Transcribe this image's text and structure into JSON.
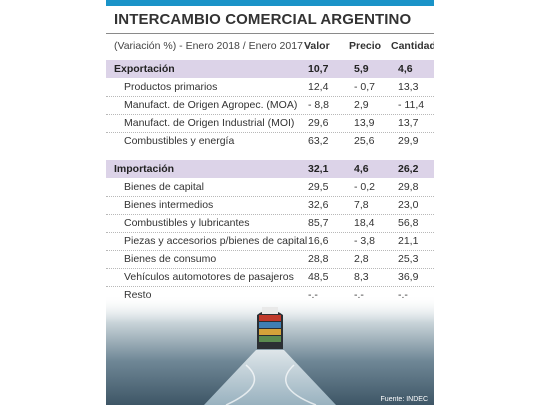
{
  "title": "INTERCAMBIO COMERCIAL ARGENTINO",
  "header": {
    "label": "(Variación %) - Enero 2018 / Enero 2017 -",
    "columns": [
      "Valor",
      "Precio",
      "Cantidad"
    ]
  },
  "exportacion": {
    "label": "Exportación",
    "values": [
      "10,7",
      "5,9",
      "4,6"
    ],
    "rows": [
      {
        "name": "Productos primarios",
        "values": [
          "12,4",
          "- 0,7",
          "13,3"
        ]
      },
      {
        "name": "Manufact. de Origen Agropec. (MOA)",
        "values": [
          "- 8,8",
          "2,9",
          "- 11,4"
        ]
      },
      {
        "name": "Manufact. de Origen Industrial (MOI)",
        "values": [
          "29,6",
          "13,9",
          "13,7"
        ]
      },
      {
        "name": "Combustibles y energía",
        "values": [
          "63,2",
          "25,6",
          "29,9"
        ]
      }
    ]
  },
  "importacion": {
    "label": "Importación",
    "values": [
      "32,1",
      "4,6",
      "26,2"
    ],
    "rows": [
      {
        "name": "Bienes de capital",
        "values": [
          "29,5",
          "- 0,2",
          "29,8"
        ]
      },
      {
        "name": "Bienes intermedios",
        "values": [
          "32,6",
          "7,8",
          "23,0"
        ]
      },
      {
        "name": "Combustibles y lubricantes",
        "values": [
          "85,7",
          "18,4",
          "56,8"
        ]
      },
      {
        "name": "Piezas y accesorios p/bienes de capital",
        "values": [
          "16,6",
          "- 3,8",
          "21,1"
        ]
      },
      {
        "name": "Bienes de consumo",
        "values": [
          "28,8",
          "2,8",
          "25,3"
        ]
      },
      {
        "name": "Vehículos automotores de pasajeros",
        "values": [
          "48,5",
          "8,3",
          "36,9"
        ]
      },
      {
        "name": "Resto",
        "values": [
          "-.-",
          "-.-",
          "-.-"
        ]
      }
    ]
  },
  "source": "Fuente: INDEC",
  "colors": {
    "accent_bar": "#1a93c8",
    "section_bg": "#dcd3e8"
  }
}
